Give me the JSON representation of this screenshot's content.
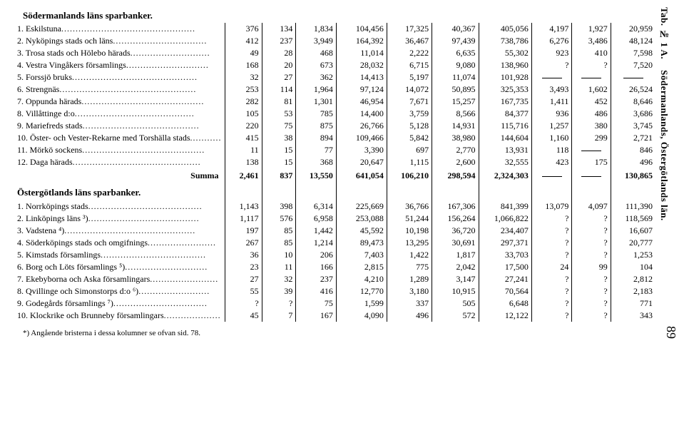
{
  "side_label_top": "Tab. № 1 A.",
  "side_label_bottom": "Södermanlands, Östergötlands län.",
  "page_number": "89",
  "footnote": "*) Angående bristerna i dessa kolumner se ofvan sid. 78.",
  "section1_title": "Södermanlands läns sparbanker.",
  "section2_title": "Östergötlands läns sparbanker.",
  "summa_label": "Summa",
  "section1": {
    "rows": [
      {
        "label": "1. Eskilstuna",
        "c": [
          "376",
          "134",
          "1,834",
          "104,456",
          "17,325",
          "40,367",
          "405,056",
          "4,197",
          "1,927",
          "20,959"
        ]
      },
      {
        "label": "2. Nyköpings stads och läns",
        "c": [
          "412",
          "237",
          "3,949",
          "164,392",
          "36,467",
          "97,439",
          "738,786",
          "6,276",
          "3,486",
          "48,124"
        ]
      },
      {
        "label": "3. Trosa stads och Hölebo härads",
        "c": [
          "49",
          "28",
          "468",
          "11,014",
          "2,222",
          "6,635",
          "55,302",
          "923",
          "410",
          "7,598"
        ]
      },
      {
        "label": "4. Vestra Vingåkers församlings",
        "c": [
          "168",
          "20",
          "673",
          "28,032",
          "6,715",
          "9,080",
          "138,960",
          "?",
          "?",
          "7,520"
        ]
      },
      {
        "label": "5. Forssjö bruks",
        "c": [
          "32",
          "27",
          "362",
          "14,413",
          "5,197",
          "11,074",
          "101,928",
          "—",
          "—",
          "—"
        ]
      },
      {
        "label": "6. Strengnäs",
        "c": [
          "253",
          "114",
          "1,964",
          "97,124",
          "14,072",
          "50,895",
          "325,353",
          "3,493",
          "1,602",
          "26,524"
        ]
      },
      {
        "label": "7. Oppunda härads",
        "c": [
          "282",
          "81",
          "1,301",
          "46,954",
          "7,671",
          "15,257",
          "167,735",
          "1,411",
          "452",
          "8,646"
        ]
      },
      {
        "label": "8. Villåttinge d:o",
        "c": [
          "105",
          "53",
          "785",
          "14,400",
          "3,759",
          "8,566",
          "84,377",
          "936",
          "486",
          "3,686"
        ]
      },
      {
        "label": "9. Mariefreds stads",
        "c": [
          "220",
          "75",
          "875",
          "26,766",
          "5,128",
          "14,931",
          "115,716",
          "1,257",
          "380",
          "3,745"
        ]
      },
      {
        "label": "10. Öster- och Vester-Rekarne med Torshälla stads",
        "c": [
          "415",
          "38",
          "894",
          "109,466",
          "5,842",
          "38,980",
          "144,604",
          "1,160",
          "299",
          "2,721"
        ]
      },
      {
        "label": "11. Mörkö sockens",
        "c": [
          "11",
          "15",
          "77",
          "3,390",
          "697",
          "2,770",
          "13,931",
          "118",
          "—",
          "846"
        ]
      },
      {
        "label": "12. Daga härads",
        "c": [
          "138",
          "15",
          "368",
          "20,647",
          "1,115",
          "2,600",
          "32,555",
          "423",
          "175",
          "496"
        ]
      }
    ],
    "summa": [
      "2,461",
      "837",
      "13,550",
      "641,054",
      "106,210",
      "298,594",
      "2,324,303",
      "—",
      "—",
      "130,865"
    ]
  },
  "section2": {
    "rows": [
      {
        "label": "1. Norrköpings stads",
        "c": [
          "1,143",
          "398",
          "6,314",
          "225,669",
          "36,766",
          "167,306",
          "841,399",
          "13,079",
          "4,097",
          "111,390"
        ]
      },
      {
        "label": "2. Linköpings läns ³)",
        "c": [
          "1,117",
          "576",
          "6,958",
          "253,088",
          "51,244",
          "156,264",
          "1,066,822",
          "?",
          "?",
          "118,569"
        ]
      },
      {
        "label": "3. Vadstena ⁴)",
        "c": [
          "197",
          "85",
          "1,442",
          "45,592",
          "10,198",
          "36,720",
          "234,407",
          "?",
          "?",
          "16,607"
        ]
      },
      {
        "label": "4. Söderköpings stads och omgifnings",
        "c": [
          "267",
          "85",
          "1,214",
          "89,473",
          "13,295",
          "30,691",
          "297,371",
          "?",
          "?",
          "20,777"
        ]
      },
      {
        "label": "5. Kimstads församlings",
        "c": [
          "36",
          "10",
          "206",
          "7,403",
          "1,422",
          "1,817",
          "33,703",
          "?",
          "?",
          "1,253"
        ]
      },
      {
        "label": "6. Borg och Löts församlings ⁵)",
        "c": [
          "23",
          "11",
          "166",
          "2,815",
          "775",
          "2,042",
          "17,500",
          "24",
          "99",
          "104"
        ]
      },
      {
        "label": "7. Ekebyborna och Aska församlingars",
        "c": [
          "27",
          "32",
          "237",
          "4,210",
          "1,289",
          "3,147",
          "27,241",
          "?",
          "?",
          "2,812"
        ]
      },
      {
        "label": "8. Qvillinge och Simonstorps d:o ⁶)",
        "c": [
          "55",
          "39",
          "416",
          "12,770",
          "3,180",
          "10,915",
          "70,564",
          "?",
          "?",
          "2,183"
        ]
      },
      {
        "label": "9. Godegårds församlings ⁷)",
        "c": [
          "?",
          "?",
          "75",
          "1,599",
          "337",
          "505",
          "6,648",
          "?",
          "?",
          "771"
        ]
      },
      {
        "label": "10. Klockrike och Brunneby församlingars",
        "c": [
          "45",
          "7",
          "167",
          "4,090",
          "496",
          "572",
          "12,122",
          "?",
          "?",
          "343"
        ]
      }
    ]
  },
  "col_widths": [
    "38",
    "30",
    "42",
    "55",
    "48",
    "50",
    "58",
    "42",
    "40",
    "48"
  ]
}
